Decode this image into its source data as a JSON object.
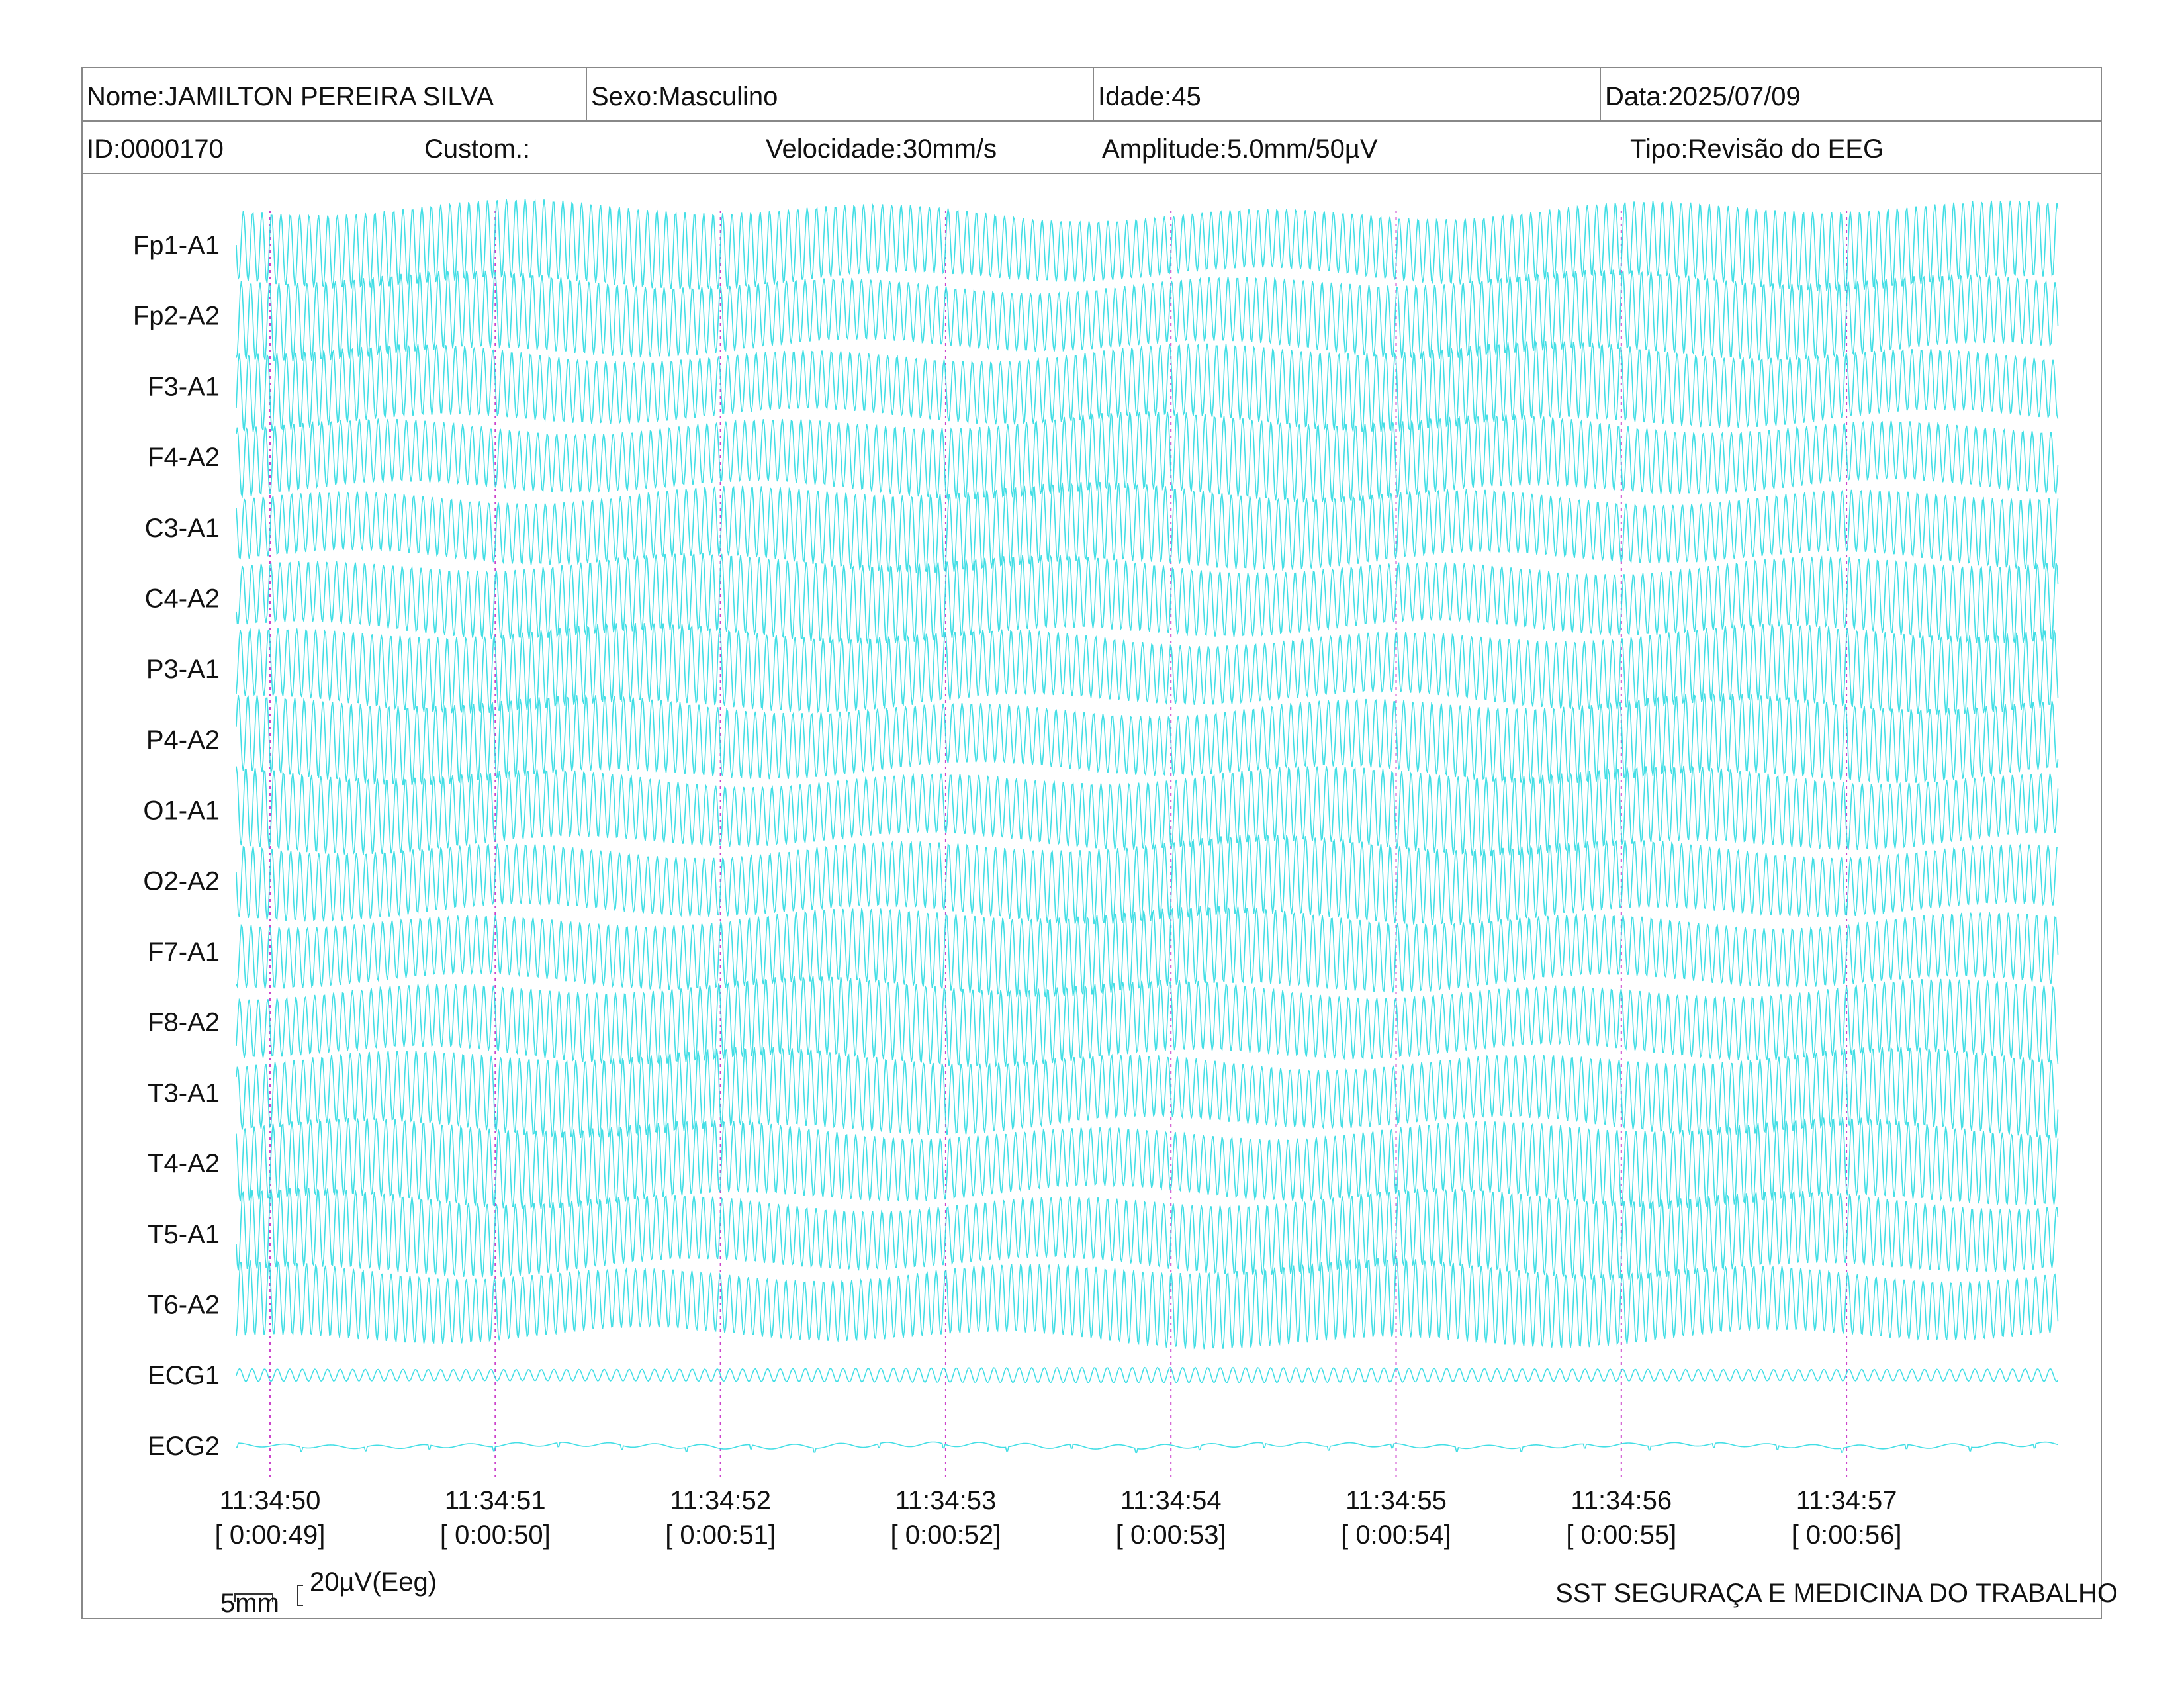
{
  "header": {
    "nome": "Nome:JAMILTON PEREIRA SILVA",
    "sexo": "Sexo:Masculino",
    "idade": "Idade:45",
    "data": "Data:2025/07/09",
    "id": "ID:0000170",
    "custom": "Custom.:",
    "velocidade": "Velocidade:30mm/s",
    "amplitude": "Amplitude:5.0mm/50µV",
    "tipo": "Tipo:Revisão do EEG"
  },
  "colors": {
    "trace": "#22d8e0",
    "marker": "#cc44cc",
    "border": "#888888"
  },
  "chart_data": {
    "type": "line",
    "channels": [
      "Fp1-A1",
      "Fp2-A2",
      "F3-A1",
      "F4-A2",
      "C3-A1",
      "C4-A2",
      "P3-A1",
      "P4-A2",
      "O1-A1",
      "O2-A2",
      "F7-A1",
      "F8-A2",
      "T3-A1",
      "T4-A2",
      "T5-A1",
      "T6-A2",
      "ECG1",
      "ECG2"
    ],
    "time_markers": [
      {
        "clock": "11:34:50",
        "elapsed": "[ 0:00:49]"
      },
      {
        "clock": "11:34:51",
        "elapsed": "[ 0:00:50]"
      },
      {
        "clock": "11:34:52",
        "elapsed": "[ 0:00:51]"
      },
      {
        "clock": "11:34:53",
        "elapsed": "[ 0:00:52]"
      },
      {
        "clock": "11:34:54",
        "elapsed": "[ 0:00:53]"
      },
      {
        "clock": "11:34:55",
        "elapsed": "[ 0:00:54]"
      },
      {
        "clock": "11:34:56",
        "elapsed": "[ 0:00:55]"
      },
      {
        "clock": "11:34:57",
        "elapsed": "[ 0:00:56]"
      }
    ],
    "scale": {
      "time": "5mm",
      "amplitude": "20µV(Eeg)"
    }
  },
  "footer": "SST SEGURAÇA E MEDICINA DO TRABALHO"
}
